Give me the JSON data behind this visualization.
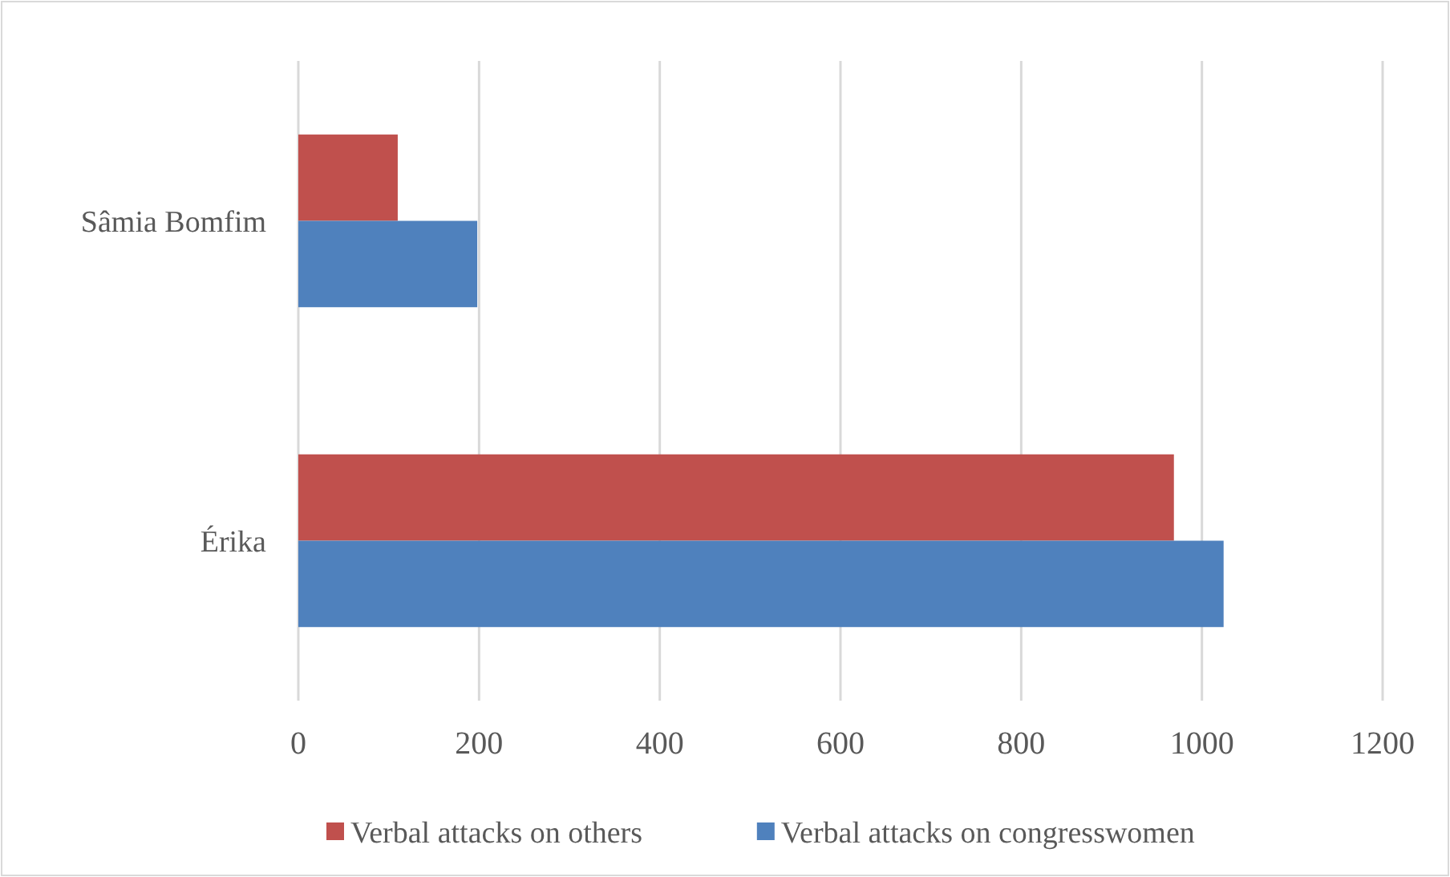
{
  "chart_data": {
    "type": "bar",
    "orientation": "horizontal",
    "categories": [
      "Sâmia Bomfim",
      "Érika"
    ],
    "series": [
      {
        "name": "Verbal attacks on others",
        "color": "#c0504d",
        "values": [
          110,
          969
        ]
      },
      {
        "name": "Verbal attacks on congresswomen",
        "color": "#4f81bd",
        "values": [
          198,
          1024
        ]
      }
    ],
    "xlim": [
      0,
      1200
    ],
    "xticks": [
      0,
      200,
      400,
      600,
      800,
      1000,
      1200
    ],
    "grid": "x",
    "legend": "bottom"
  }
}
